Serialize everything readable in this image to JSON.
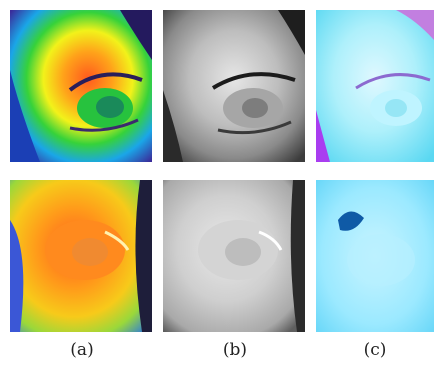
{
  "captions": [
    "(a)",
    "(b)",
    "(c)"
  ],
  "panels": {
    "a1": "eye-rainbow-thermal",
    "b1": "eye-grayscale",
    "c1": "eye-cyan-magenta",
    "a2": "eye-orange-thermal",
    "b2": "eye-grayscale",
    "c2": "eye-cyan"
  }
}
